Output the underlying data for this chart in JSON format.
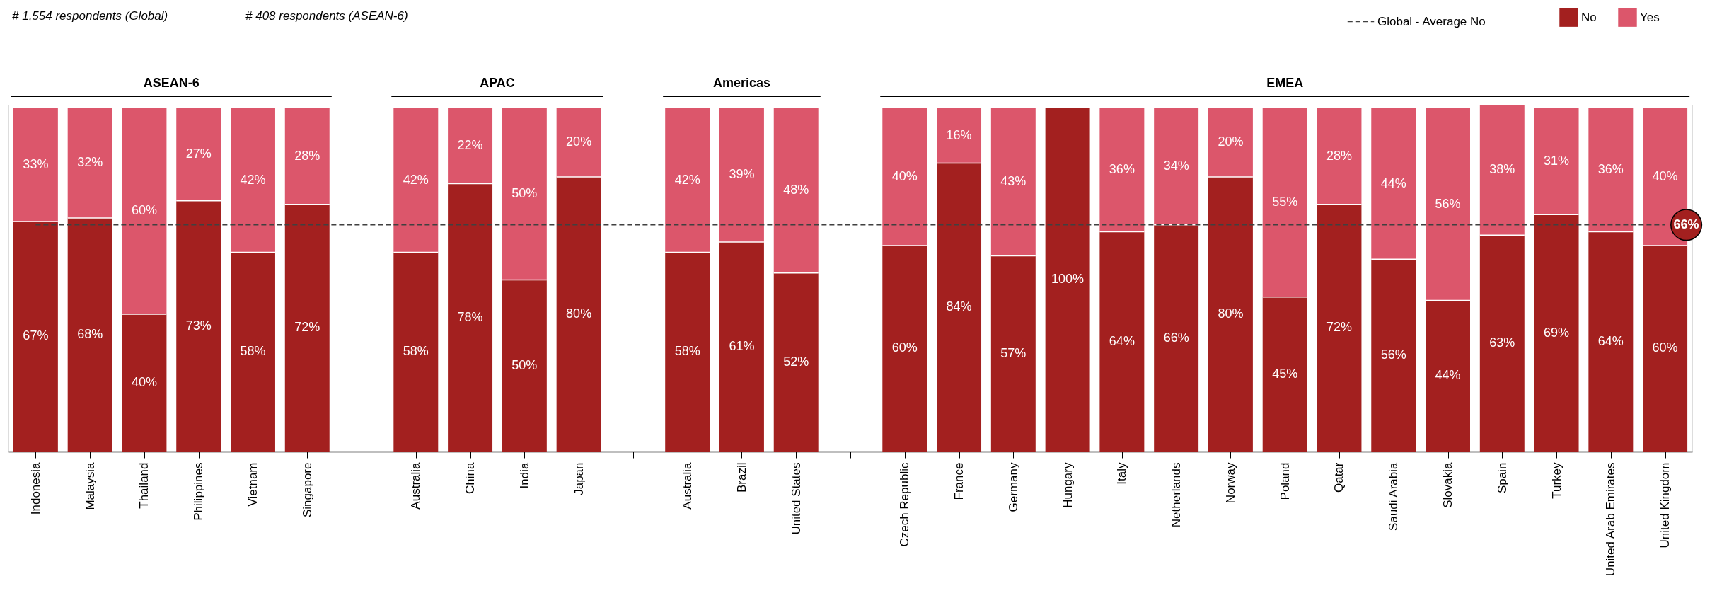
{
  "chart_data": {
    "type": "bar",
    "stacked": true,
    "legend": "top right",
    "categories": [
      "Indonesia",
      "Malaysia",
      "Thailand",
      "Philippines",
      "Vietnam",
      "Singapore",
      null,
      "Australia",
      "China",
      "India",
      "Japan",
      null,
      "Australia",
      "Brazil",
      "United States",
      null,
      "Czech Republic",
      "France",
      "Germany",
      "Hungary",
      "Italy",
      "Netherlands",
      "Norway",
      "Poland",
      "Qatar",
      "Saudi Arabia",
      "Slovakia",
      "Spain",
      "Turkey",
      "United Arab Emirates",
      "United Kingdom"
    ],
    "series": [
      {
        "name": "Global - Average No",
        "type": "line",
        "line_style": "dashed",
        "color": "#404040",
        "values": [
          66,
          66,
          66,
          66,
          66,
          66,
          66,
          66,
          66,
          66,
          66,
          66,
          66,
          66,
          66,
          66,
          66,
          66,
          66,
          66,
          66,
          66,
          66,
          66,
          66,
          66,
          66,
          66,
          66,
          66,
          66
        ],
        "value_labels": [
          null,
          null,
          null,
          null,
          null,
          null,
          null,
          null,
          null,
          null,
          null,
          null,
          null,
          null,
          null,
          null,
          null,
          null,
          null,
          null,
          null,
          null,
          null,
          null,
          null,
          null,
          null,
          null,
          null,
          null,
          "66%"
        ]
      },
      {
        "name": "No",
        "color": "#a3201f",
        "values": [
          67,
          68,
          40,
          73,
          58,
          72,
          null,
          58,
          78,
          50,
          80,
          null,
          58,
          61,
          52,
          null,
          60,
          84,
          57,
          100,
          64,
          66,
          80,
          45,
          72,
          56,
          44,
          63,
          69,
          64,
          60
        ],
        "value_labels": [
          "67%",
          "68%",
          "40%",
          "73%",
          "58%",
          "72%",
          null,
          "58%",
          "78%",
          "50%",
          "80%",
          null,
          "58%",
          "61%",
          "52%",
          null,
          "60%",
          "84%",
          "57%",
          "100%",
          "64%",
          "66%",
          "80%",
          "45%",
          "72%",
          "56%",
          "44%",
          "63%",
          "69%",
          "64%",
          "60%"
        ]
      },
      {
        "name": "Yes",
        "color": "#dc566b",
        "values": [
          33,
          32,
          60,
          27,
          42,
          28,
          null,
          42,
          22,
          50,
          20,
          null,
          42,
          39,
          48,
          null,
          40,
          16,
          43,
          0,
          36,
          34,
          20,
          55,
          28,
          44,
          56,
          38,
          31,
          36,
          40
        ],
        "value_labels": [
          "33%",
          "32%",
          "60%",
          "27%",
          "42%",
          "28%",
          null,
          "42%",
          "22%",
          "50%",
          "20%",
          null,
          "42%",
          "39%",
          "48%",
          null,
          "40%",
          "16%",
          "43%",
          null,
          "36%",
          "34%",
          "20%",
          "55%",
          "28%",
          "44%",
          "56%",
          "38%",
          "31%",
          "36%",
          "40%"
        ]
      }
    ],
    "annotations": [
      "ASEAN-6",
      "APAC",
      "Americas",
      "EMEA",
      "# 1,554 respondents (Global)",
      "# 408 respondents (ASEAN-6)"
    ]
  }
}
